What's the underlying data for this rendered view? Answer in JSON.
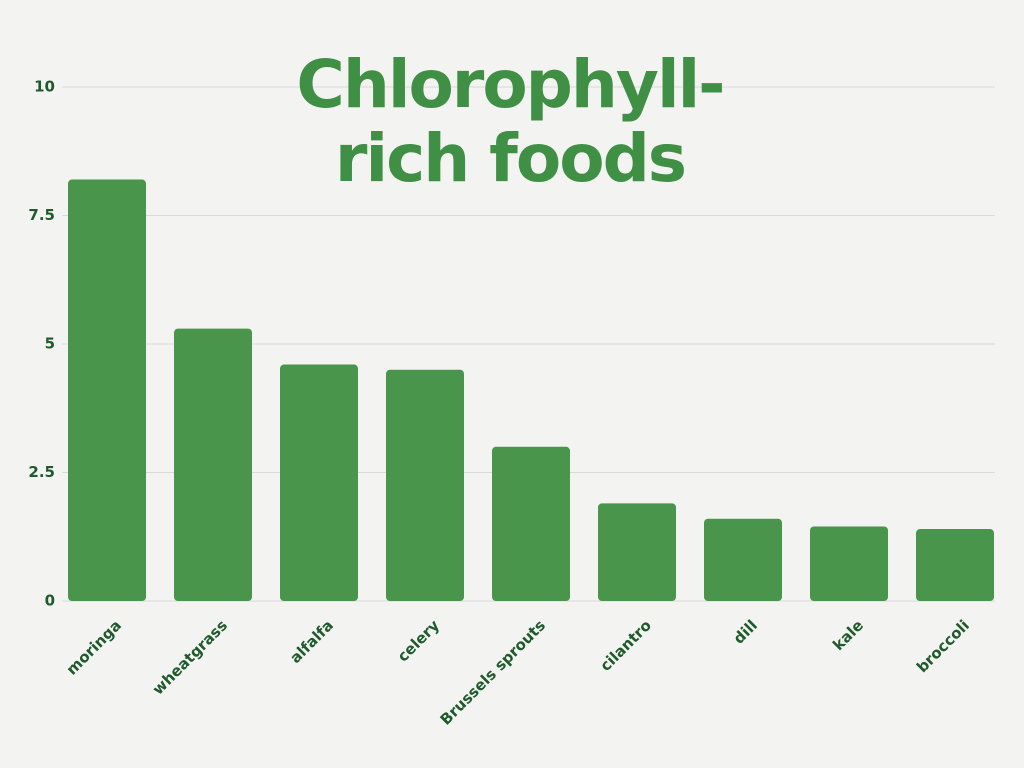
{
  "chart_data": {
    "type": "bar",
    "title": "Chlorophyll-rich foods",
    "categories": [
      "moringa",
      "wheatgrass",
      "alfalfa",
      "celery",
      "Brussels sprouts",
      "cilantro",
      "dill",
      "kale",
      "broccoli"
    ],
    "values": [
      8.2,
      5.3,
      4.6,
      4.5,
      3.0,
      1.9,
      1.6,
      1.45,
      1.4
    ],
    "color": "#4a954c",
    "ylim": [
      0,
      10
    ],
    "yticks": [
      0,
      2.5,
      5,
      7.5,
      10
    ],
    "grid": true
  }
}
